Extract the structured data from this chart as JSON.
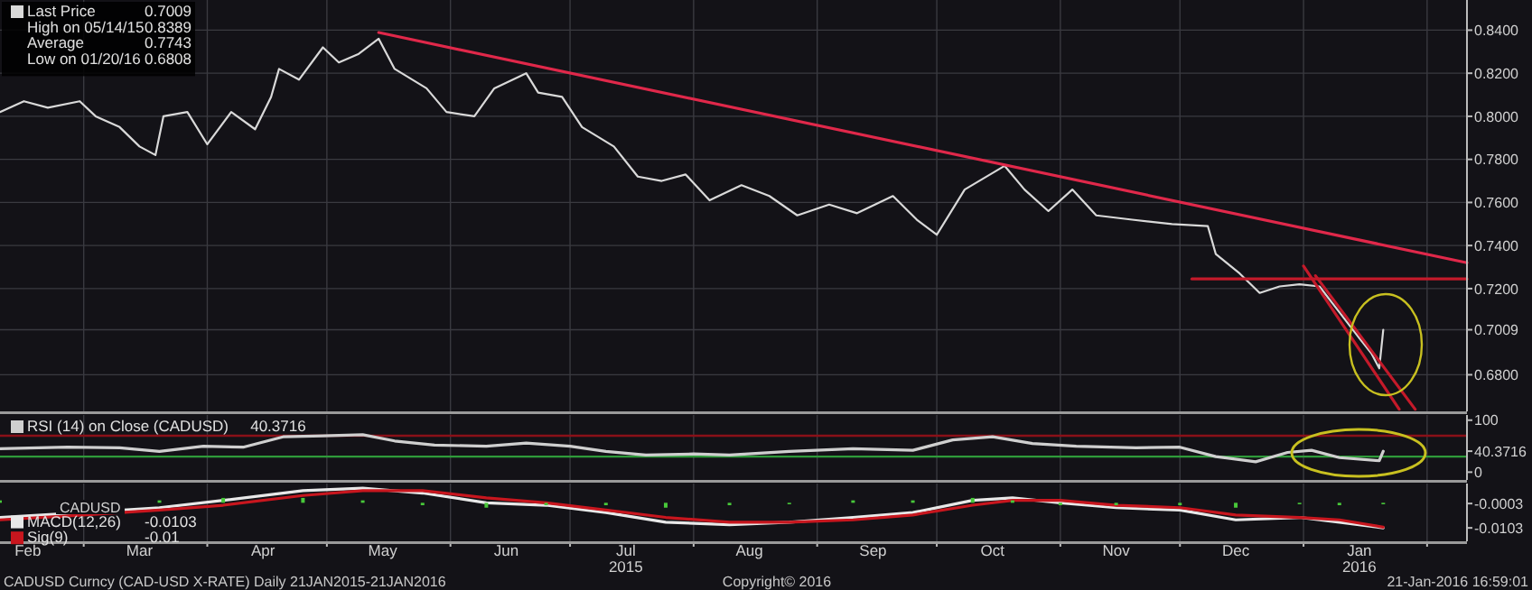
{
  "chart_data": [
    {
      "type": "line",
      "xlim": [
        "2015-02-08",
        "2016-02-11"
      ],
      "ylim": [
        0.663,
        0.854
      ],
      "xticks": [
        {
          "value": "2015-03-01",
          "label": null
        },
        {
          "value": "2015-04-01",
          "label": null
        },
        {
          "value": "2015-05-01",
          "label": null
        },
        {
          "value": "2015-06-01",
          "label": null
        },
        {
          "value": "2015-07-01",
          "label": null
        },
        {
          "value": "2015-08-01",
          "label": null
        },
        {
          "value": "2015-09-01",
          "label": null
        },
        {
          "value": "2015-10-01",
          "label": null
        },
        {
          "value": "2015-11-01",
          "label": null
        },
        {
          "value": "2015-12-01",
          "label": null
        },
        {
          "value": "2016-01-01",
          "label": null
        },
        {
          "value": "2016-02-01",
          "label": null
        }
      ],
      "yticks": [
        {
          "value": 0.68,
          "label": "0.6800"
        },
        {
          "value": 0.7009,
          "label": "0.7009"
        },
        {
          "value": 0.72,
          "label": "0.7200"
        },
        {
          "value": 0.74,
          "label": "0.7400"
        },
        {
          "value": 0.76,
          "label": "0.7600"
        },
        {
          "value": 0.78,
          "label": "0.7800"
        },
        {
          "value": 0.8,
          "label": "0.8000"
        },
        {
          "value": 0.82,
          "label": "0.8200"
        },
        {
          "value": 0.84,
          "label": "0.8400"
        }
      ],
      "tick_labels": "y",
      "grid": true,
      "legend": "top left",
      "annotations": [
        "0.7009",
        "High on 05/14/15",
        "0.8389",
        "Average",
        "0.7743",
        "Low on 01/20/16",
        "0.6808"
      ],
      "series": [
        {
          "name": "Last Price",
          "color": "#d9d9d9",
          "x": [
            "2015-02-08",
            "2015-02-14",
            "2015-02-20",
            "2015-02-28",
            "2015-03-04",
            "2015-03-10",
            "2015-03-15",
            "2015-03-19",
            "2015-03-21",
            "2015-03-27",
            "2015-04-01",
            "2015-04-07",
            "2015-04-13",
            "2015-04-17",
            "2015-04-19",
            "2015-04-24",
            "2015-04-30",
            "2015-05-04",
            "2015-05-09",
            "2015-05-14",
            "2015-05-18",
            "2015-05-26",
            "2015-05-31",
            "2015-06-07",
            "2015-06-12",
            "2015-06-20",
            "2015-06-23",
            "2015-06-29",
            "2015-07-04",
            "2015-07-12",
            "2015-07-18",
            "2015-07-24",
            "2015-07-30",
            "2015-08-05",
            "2015-08-13",
            "2015-08-20",
            "2015-08-27",
            "2015-09-04",
            "2015-09-11",
            "2015-09-20",
            "2015-09-26",
            "2015-10-01",
            "2015-10-08",
            "2015-10-18",
            "2015-10-23",
            "2015-10-29",
            "2015-11-04",
            "2015-11-10",
            "2015-11-19",
            "2015-11-29",
            "2015-12-08",
            "2015-12-10",
            "2015-12-16",
            "2015-12-21",
            "2015-12-26",
            "2015-12-31",
            "2016-01-05",
            "2016-01-10",
            "2016-01-15",
            "2016-01-18",
            "2016-01-20",
            "2016-01-21"
          ],
          "values": [
            0.802,
            0.807,
            0.804,
            0.807,
            0.8,
            0.795,
            0.786,
            0.782,
            0.8,
            0.802,
            0.787,
            0.802,
            0.794,
            0.809,
            0.822,
            0.817,
            0.832,
            0.825,
            0.829,
            0.836,
            0.822,
            0.813,
            0.802,
            0.8,
            0.813,
            0.82,
            0.811,
            0.809,
            0.795,
            0.786,
            0.772,
            0.77,
            0.773,
            0.761,
            0.768,
            0.763,
            0.754,
            0.759,
            0.755,
            0.763,
            0.752,
            0.745,
            0.766,
            0.777,
            0.766,
            0.756,
            0.766,
            0.754,
            0.752,
            0.75,
            0.749,
            0.736,
            0.727,
            0.718,
            0.721,
            0.722,
            0.721,
            0.709,
            0.697,
            0.69,
            0.683,
            0.7009
          ]
        },
        {
          "color": "#e0284a",
          "x": [
            "2015-05-14",
            "2016-02-11"
          ],
          "values": [
            0.8389,
            0.732
          ]
        },
        {
          "color": "#c41a2a",
          "x": [
            "2015-12-04",
            "2016-02-11"
          ],
          "values": [
            0.7245,
            0.7245
          ]
        },
        {
          "color": "#c41a2a",
          "x": [
            "2016-01-01",
            "2016-01-25"
          ],
          "values": [
            0.7305,
            0.664
          ]
        },
        {
          "color": "#c41a2a",
          "x": [
            "2016-01-04",
            "2016-01-29"
          ],
          "values": [
            0.726,
            0.664
          ]
        }
      ]
    },
    {
      "type": "line",
      "xlim": [
        "2015-02-08",
        "2016-02-11"
      ],
      "ylim": [
        -15,
        110
      ],
      "xticks": [
        {
          "value": "2015-03-01",
          "label": null
        },
        {
          "value": "2015-04-01",
          "label": null
        },
        {
          "value": "2015-05-01",
          "label": null
        },
        {
          "value": "2015-06-01",
          "label": null
        },
        {
          "value": "2015-07-01",
          "label": null
        },
        {
          "value": "2015-08-01",
          "label": null
        },
        {
          "value": "2015-09-01",
          "label": null
        },
        {
          "value": "2015-10-01",
          "label": null
        },
        {
          "value": "2015-11-01",
          "label": null
        },
        {
          "value": "2015-12-01",
          "label": null
        },
        {
          "value": "2016-01-01",
          "label": null
        },
        {
          "value": "2016-02-01",
          "label": null
        }
      ],
      "yticks": [
        0,
        {
          "value": 40.3716,
          "label": "40.3716"
        },
        100
      ],
      "tick_labels": "y",
      "grid": "x",
      "legend": "top left",
      "annotations": [
        "40.3716"
      ],
      "ref_lines": [
        {
          "axis": "y",
          "value": 70,
          "color": "#8a1018"
        },
        {
          "axis": "y",
          "value": 30,
          "color": "#2f9a3a"
        }
      ],
      "series": [
        {
          "name": "RSI (14) on Close (CADUSD)",
          "color": "#cfcfcf",
          "x": [
            "2015-02-08",
            "2015-02-25",
            "2015-03-10",
            "2015-03-20",
            "2015-03-31",
            "2015-04-10",
            "2015-04-20",
            "2015-04-30",
            "2015-05-10",
            "2015-05-18",
            "2015-05-28",
            "2015-06-10",
            "2015-06-20",
            "2015-07-01",
            "2015-07-10",
            "2015-07-20",
            "2015-08-01",
            "2015-08-10",
            "2015-08-25",
            "2015-09-10",
            "2015-09-25",
            "2015-10-05",
            "2015-10-15",
            "2015-10-25",
            "2015-11-05",
            "2015-11-20",
            "2015-12-01",
            "2015-12-10",
            "2015-12-20",
            "2015-12-28",
            "2016-01-03",
            "2016-01-10",
            "2016-01-20",
            "2016-01-21"
          ],
          "values": [
            45,
            48,
            47,
            40,
            50,
            48,
            68,
            70,
            72,
            60,
            52,
            50,
            56,
            50,
            40,
            33,
            35,
            33,
            40,
            45,
            42,
            62,
            68,
            55,
            50,
            47,
            48,
            30,
            20,
            38,
            42,
            28,
            22,
            40.3716
          ]
        }
      ]
    },
    {
      "type": "line",
      "xlim": [
        "2015-02-08",
        "2016-02-11"
      ],
      "ylim": [
        -0.0158,
        0.0079
      ],
      "xticks": [
        {
          "value": "2015-02-15",
          "label": "Feb"
        },
        {
          "value": "2015-03-01",
          "label": null
        },
        {
          "value": "2015-03-15",
          "label": "Mar"
        },
        {
          "value": "2015-04-01",
          "label": null
        },
        {
          "value": "2015-04-15",
          "label": "Apr"
        },
        {
          "value": "2015-05-01",
          "label": null
        },
        {
          "value": "2015-05-15",
          "label": "May"
        },
        {
          "value": "2015-06-01",
          "label": null
        },
        {
          "value": "2015-06-15",
          "label": "Jun"
        },
        {
          "value": "2015-07-01",
          "label": null
        },
        {
          "value": "2015-07-15",
          "label": "Jul\n2015"
        },
        {
          "value": "2015-08-01",
          "label": null
        },
        {
          "value": "2015-08-15",
          "label": "Aug"
        },
        {
          "value": "2015-09-01",
          "label": null
        },
        {
          "value": "2015-09-15",
          "label": "Sep"
        },
        {
          "value": "2015-10-01",
          "label": null
        },
        {
          "value": "2015-10-15",
          "label": "Oct"
        },
        {
          "value": "2015-11-01",
          "label": null
        },
        {
          "value": "2015-11-15",
          "label": "Nov"
        },
        {
          "value": "2015-12-01",
          "label": null
        },
        {
          "value": "2015-12-15",
          "label": "Dec"
        },
        {
          "value": "2016-01-01",
          "label": null
        },
        {
          "value": "2016-01-15",
          "label": "Jan\n2016"
        },
        {
          "value": "2016-02-01",
          "label": null
        }
      ],
      "yticks": [
        {
          "value": -0.0103,
          "label": "-0.0103"
        },
        {
          "value": -0.0003,
          "label": "-0.0003"
        }
      ],
      "tick_labels": "xy",
      "grid": "x",
      "legend": "left",
      "legend_title": "CADUSD",
      "annotations": [
        "-0.0103",
        "-0.01",
        "CADUSD Curncy (CAD-USD X-RATE)  Daily 21JAN2015-21JAN2016",
        "Copyright© 2016",
        "21-Jan-2016 16:59:01"
      ],
      "series": [
        {
          "type": "bar",
          "color": "#48c83a",
          "x": [
            "2015-02-08",
            "2015-03-01",
            "2015-03-20",
            "2015-04-05",
            "2015-04-25",
            "2015-05-10",
            "2015-05-25",
            "2015-06-10",
            "2015-06-25",
            "2015-07-10",
            "2015-07-25",
            "2015-08-10",
            "2015-08-25",
            "2015-09-10",
            "2015-09-25",
            "2015-10-10",
            "2015-10-20",
            "2015-11-01",
            "2015-11-15",
            "2015-12-01",
            "2015-12-15",
            "2015-12-31",
            "2016-01-10",
            "2016-01-21"
          ],
          "values": [
            0.001,
            0.001,
            0.001,
            0.002,
            0.002,
            0.001,
            -0.001,
            -0.002,
            -0.001,
            -0.001,
            -0.002,
            -0.001,
            0,
            0.001,
            0.001,
            0.002,
            0.001,
            -0.001,
            -0.001,
            -0.001,
            -0.002,
            0,
            -0.001,
            -0.0003
          ]
        },
        {
          "name": "MACD(12,26)",
          "color": "#e8e8e8",
          "x": [
            "2015-02-08",
            "2015-03-01",
            "2015-03-20",
            "2015-04-05",
            "2015-04-25",
            "2015-05-10",
            "2015-05-25",
            "2015-06-10",
            "2015-06-25",
            "2015-07-10",
            "2015-07-25",
            "2015-08-10",
            "2015-08-25",
            "2015-09-10",
            "2015-09-25",
            "2015-10-10",
            "2015-10-20",
            "2015-11-01",
            "2015-11-15",
            "2015-12-01",
            "2015-12-15",
            "2015-12-31",
            "2016-01-10",
            "2016-01-21"
          ],
          "values": [
            -0.006,
            -0.004,
            -0.002,
            0.001,
            0.005,
            0.006,
            0.004,
            0,
            -0.001,
            -0.004,
            -0.008,
            -0.009,
            -0.008,
            -0.006,
            -0.004,
            0.001,
            0.002,
            0,
            -0.002,
            -0.003,
            -0.007,
            -0.006,
            -0.008,
            -0.0103
          ]
        },
        {
          "name": "Sig(9)",
          "color": "#c8161e",
          "x": [
            "2015-02-08",
            "2015-03-01",
            "2015-03-20",
            "2015-04-05",
            "2015-04-25",
            "2015-05-10",
            "2015-05-25",
            "2015-06-10",
            "2015-06-25",
            "2015-07-10",
            "2015-07-25",
            "2015-08-10",
            "2015-08-25",
            "2015-09-10",
            "2015-09-25",
            "2015-10-10",
            "2015-10-20",
            "2015-11-01",
            "2015-11-15",
            "2015-12-01",
            "2015-12-15",
            "2015-12-31",
            "2016-01-10",
            "2016-01-21"
          ],
          "values": [
            -0.007,
            -0.005,
            -0.003,
            -0.001,
            0.003,
            0.005,
            0.005,
            0.002,
            0,
            -0.003,
            -0.006,
            -0.008,
            -0.008,
            -0.007,
            -0.005,
            -0.001,
            0.001,
            0.001,
            -0.001,
            -0.002,
            -0.005,
            -0.006,
            -0.007,
            -0.01
          ]
        }
      ]
    }
  ]
}
